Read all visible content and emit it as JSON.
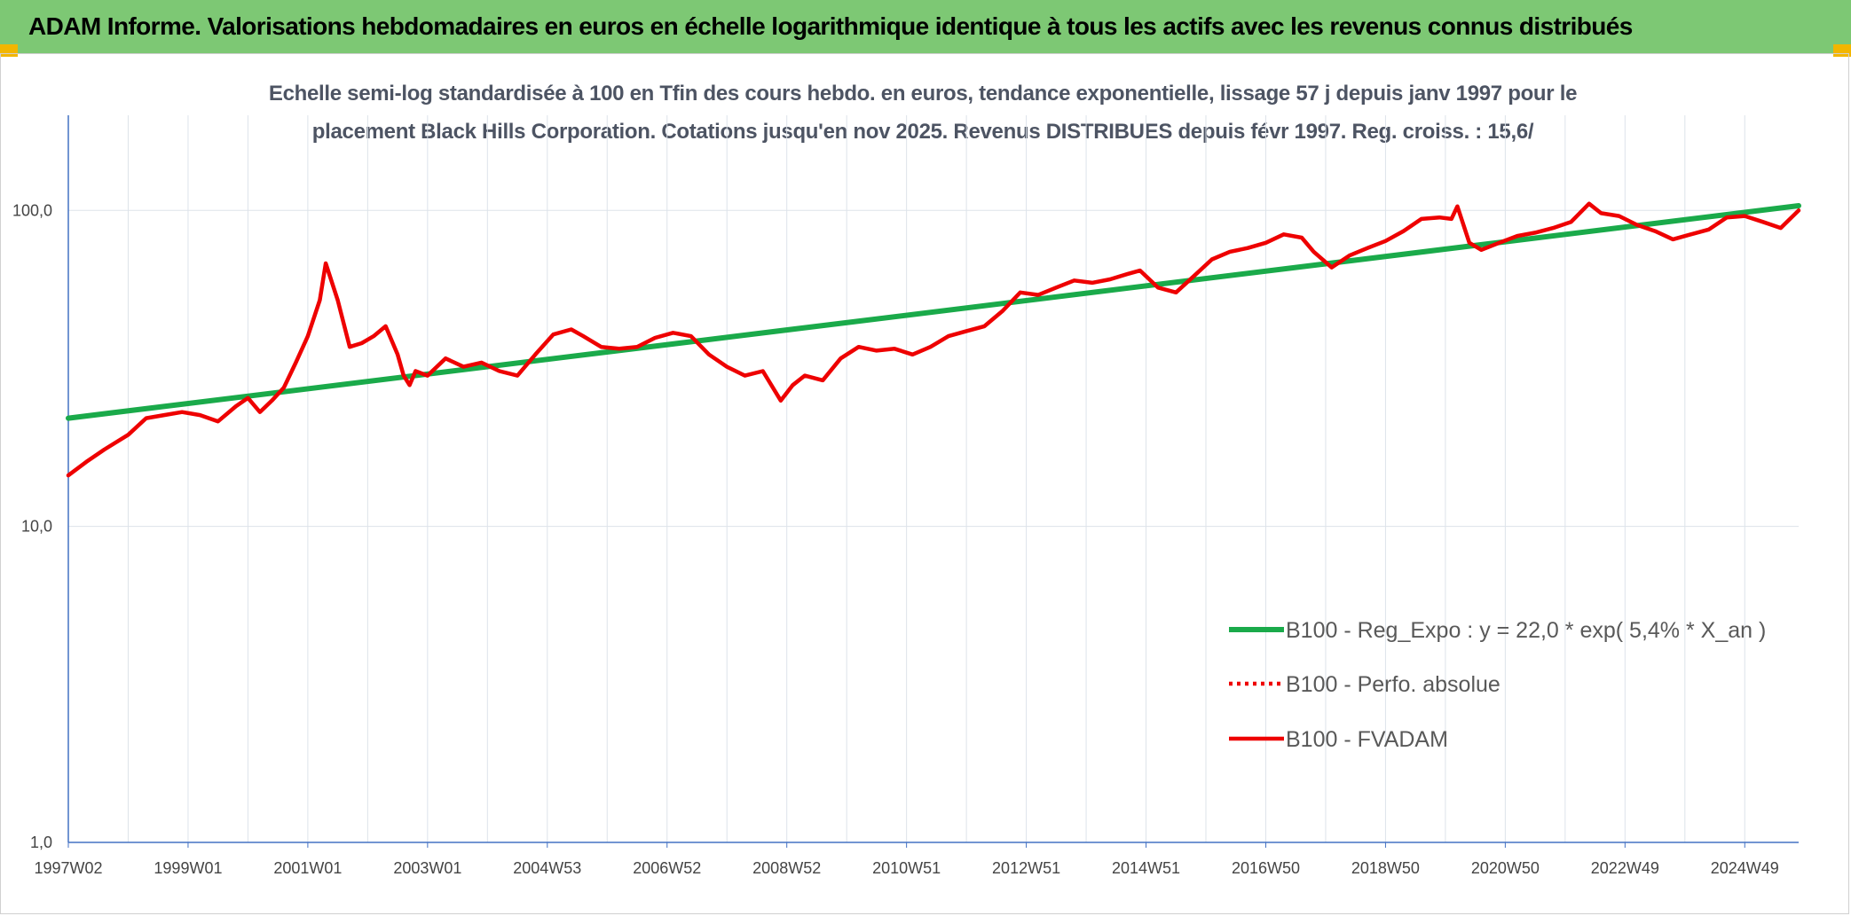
{
  "header": {
    "title": "ADAM Informe. Valorisations hebdomadaires en euros en échelle logarithmique identique à tous les actifs avec les revenus connus distribués"
  },
  "colors": {
    "header_bg": "#7dc874",
    "trend": "#1aaa4a",
    "price": "#ee0000",
    "corner": "#f2b600"
  },
  "chart_data": {
    "type": "line",
    "title": "Echelle semi-log standardisée à 100 en Tfin des cours hebdo. en euros, tendance exponentielle, lissage 57 j depuis janv 1997 pour le placement Black Hills Corporation. Cotations jusqu'en nov 2025. Revenus DISTRIBUES depuis févr 1997. Reg. croiss. : 15,6/",
    "title_lines": [
      "Echelle semi-log standardisée à 100 en Tfin des cours hebdo. en euros, tendance exponentielle, lissage 57 j depuis janv 1997 pour le",
      "placement Black Hills Corporation. Cotations jusqu'en nov 2025. Revenus DISTRIBUES depuis févr 1997. Reg. croiss. : 15,6/"
    ],
    "y_scale": "log",
    "ylim": [
      1,
      200
    ],
    "y_ticks": [
      {
        "value": 1,
        "label": "1,0"
      },
      {
        "value": 10,
        "label": "10,0"
      },
      {
        "value": 100,
        "label": "100,0"
      }
    ],
    "xlim": [
      1997.0,
      2025.9
    ],
    "x_ticks": [
      {
        "value": 1997.0,
        "label": "1997W02"
      },
      {
        "value": 1999.0,
        "label": "1999W01"
      },
      {
        "value": 2001.0,
        "label": "2001W01"
      },
      {
        "value": 2003.0,
        "label": "2003W01"
      },
      {
        "value": 2005.0,
        "label": "2004W53"
      },
      {
        "value": 2007.0,
        "label": "2006W52"
      },
      {
        "value": 2009.0,
        "label": "2008W52"
      },
      {
        "value": 2011.0,
        "label": "2010W51"
      },
      {
        "value": 2013.0,
        "label": "2012W51"
      },
      {
        "value": 2015.0,
        "label": "2014W51"
      },
      {
        "value": 2017.0,
        "label": "2016W50"
      },
      {
        "value": 2019.0,
        "label": "2018W50"
      },
      {
        "value": 2021.0,
        "label": "2020W50"
      },
      {
        "value": 2023.0,
        "label": "2022W49"
      },
      {
        "value": 2025.0,
        "label": "2024W49"
      }
    ],
    "grid": true,
    "legend_position": "lower-right",
    "series": [
      {
        "name": "B100 - Reg_Expo : y = 22,0 * exp( 5,4% *  X_an )",
        "style": "solid",
        "color": "#1aaa4a",
        "x": [
          1997.0,
          2025.9
        ],
        "y": [
          22.0,
          103.5
        ]
      },
      {
        "name": "B100 - Perfo. absolue",
        "style": "dotted",
        "color": "#ee0000",
        "x": [],
        "y": []
      },
      {
        "name": "B100 - FVADAM",
        "style": "solid",
        "color": "#ee0000",
        "x": [
          1997.0,
          1997.3,
          1997.6,
          1998.0,
          1998.3,
          1998.6,
          1998.9,
          1999.2,
          1999.5,
          1999.8,
          2000.0,
          2000.2,
          2000.4,
          2000.6,
          2000.8,
          2001.0,
          2001.2,
          2001.3,
          2001.5,
          2001.7,
          2001.9,
          2002.1,
          2002.3,
          2002.5,
          2002.6,
          2002.7,
          2002.8,
          2003.0,
          2003.3,
          2003.6,
          2003.9,
          2004.2,
          2004.5,
          2004.8,
          2005.1,
          2005.4,
          2005.6,
          2005.9,
          2006.2,
          2006.5,
          2006.8,
          2007.1,
          2007.4,
          2007.7,
          2008.0,
          2008.3,
          2008.6,
          2008.9,
          2009.1,
          2009.3,
          2009.6,
          2009.9,
          2010.2,
          2010.5,
          2010.8,
          2011.1,
          2011.4,
          2011.7,
          2012.0,
          2012.3,
          2012.6,
          2012.9,
          2013.2,
          2013.5,
          2013.8,
          2014.1,
          2014.4,
          2014.7,
          2014.9,
          2015.2,
          2015.5,
          2015.8,
          2016.1,
          2016.4,
          2016.7,
          2017.0,
          2017.3,
          2017.6,
          2017.8,
          2018.1,
          2018.4,
          2018.7,
          2019.0,
          2019.3,
          2019.6,
          2019.9,
          2020.1,
          2020.2,
          2020.4,
          2020.6,
          2020.9,
          2021.2,
          2021.5,
          2021.8,
          2022.1,
          2022.4,
          2022.6,
          2022.9,
          2023.2,
          2023.5,
          2023.8,
          2024.1,
          2024.4,
          2024.7,
          2025.0,
          2025.3,
          2025.6,
          2025.9
        ],
        "y": [
          14.5,
          16.0,
          17.5,
          19.5,
          22.0,
          22.5,
          23.0,
          22.5,
          21.5,
          24.0,
          25.5,
          23.0,
          25.0,
          27.5,
          33.0,
          40.0,
          52.0,
          68.0,
          52.0,
          37.0,
          38.0,
          40.0,
          43.0,
          35.0,
          30.0,
          28.0,
          31.0,
          30.0,
          34.0,
          32.0,
          33.0,
          31.0,
          30.0,
          35.0,
          40.5,
          42.0,
          40.0,
          37.0,
          36.5,
          37.0,
          39.5,
          41.0,
          40.0,
          35.0,
          32.0,
          30.0,
          31.0,
          25.0,
          28.0,
          30.0,
          29.0,
          34.0,
          37.0,
          36.0,
          36.5,
          35.0,
          37.0,
          40.0,
          41.5,
          43.0,
          48.0,
          55.0,
          54.0,
          57.0,
          60.0,
          59.0,
          60.5,
          63.0,
          64.5,
          57.0,
          55.0,
          62.0,
          70.0,
          74.0,
          76.0,
          79.0,
          84.0,
          82.0,
          74.0,
          66.0,
          72.0,
          76.0,
          80.0,
          86.0,
          94.0,
          95.0,
          94.0,
          103.0,
          79.0,
          75.0,
          79.0,
          83.0,
          85.0,
          88.0,
          92.0,
          105.0,
          98.0,
          96.0,
          90.0,
          86.0,
          81.0,
          84.0,
          87.0,
          95.0,
          96.0,
          92.0,
          88.0,
          100.0
        ]
      }
    ]
  }
}
